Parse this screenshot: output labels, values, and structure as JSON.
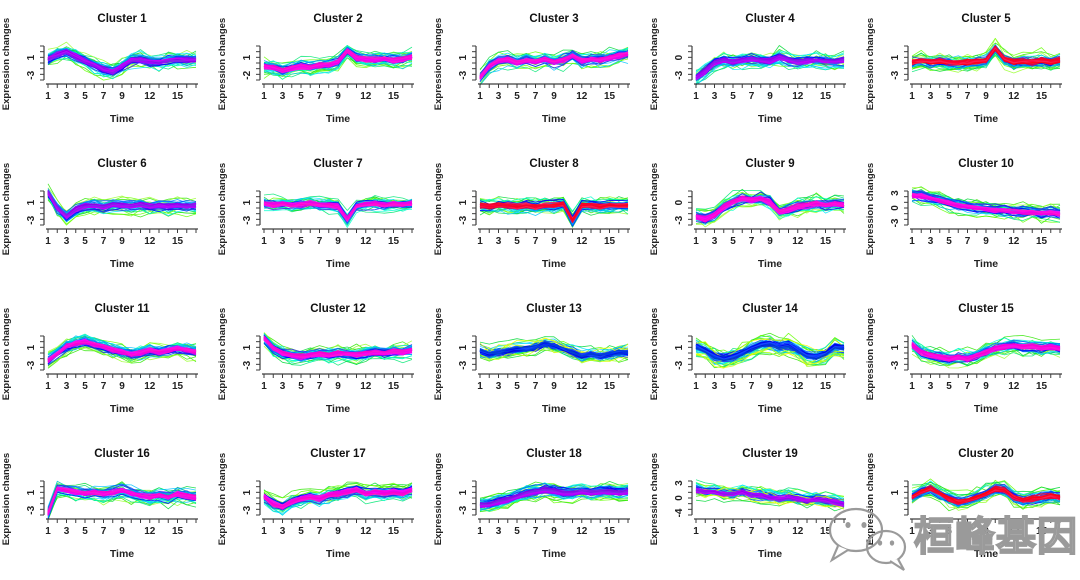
{
  "page": {
    "background": "#ffffff",
    "text_color": "#1a1a1a",
    "axis_color": "#3d3d3d"
  },
  "watermark": {
    "icon": "wechat-logo-icon",
    "text": "桓峰基因",
    "outline_color": "#9a9a9a"
  },
  "chart_data": {
    "type": "line",
    "description": "Grid of 20 fuzzy c-means (Mfuzz-style) gene expression cluster profiles over time; many member traces per panel colored green/cyan/blue (low membership) through violet/magenta/red (high membership).",
    "layout": {
      "rows": 4,
      "cols": 5,
      "grid": true,
      "legend": "none"
    },
    "xlabel": "Time",
    "ylabel": "Expression changes",
    "n_timepoints": 17,
    "xtick_labels": [
      "1",
      "3",
      "5",
      "7",
      "9",
      "12",
      "15"
    ],
    "xtick_indices": [
      0,
      2,
      4,
      6,
      8,
      11,
      14
    ],
    "membership_palette_low_to_high": [
      "#33e600",
      "#00ffcc",
      "#00c3ff",
      "#0033ff",
      "#8a00e6",
      "#ff00ff",
      "#ff0040"
    ],
    "clusters": [
      {
        "title": "Cluster 1",
        "yticks": [
          "-3",
          "1"
        ],
        "core": "violet",
        "profile": [
          0.15,
          0.45,
          0.6,
          0.35,
          0.05,
          -0.2,
          -0.45,
          -0.6,
          -0.25,
          0.1,
          0.15,
          0.05,
          0,
          0.1,
          0.15,
          0.1,
          0.15
        ]
      },
      {
        "title": "Cluster 2",
        "yticks": [
          "-2",
          "1"
        ],
        "core": "magenta",
        "profile": [
          -0.25,
          -0.35,
          -0.5,
          -0.35,
          -0.25,
          -0.3,
          -0.2,
          -0.15,
          0,
          0.65,
          0.25,
          0.15,
          0.1,
          0.2,
          0.1,
          0.15,
          0.3
        ]
      },
      {
        "title": "Cluster 3",
        "yticks": [
          "-3",
          "1"
        ],
        "core": "magenta",
        "profile": [
          -0.95,
          -0.25,
          0.05,
          0.15,
          -0.05,
          0.1,
          0,
          0.15,
          0,
          0.1,
          0.35,
          0.05,
          0.15,
          0.1,
          0.25,
          0.35,
          0.45
        ]
      },
      {
        "title": "Cluster 4",
        "yticks": [
          "-3",
          "0"
        ],
        "core": "violet",
        "profile": [
          -0.95,
          -0.55,
          -0.05,
          0.1,
          0,
          0.1,
          0.15,
          0.1,
          0.05,
          0.3,
          0.1,
          0,
          0.05,
          0.1,
          0.05,
          0,
          0.1
        ]
      },
      {
        "title": "Cluster 5",
        "yticks": [
          "-3",
          "1"
        ],
        "core": "red",
        "profile": [
          0,
          0.08,
          -0.02,
          0.06,
          -0.04,
          -0.08,
          0,
          0.02,
          0.1,
          0.8,
          0.15,
          -0.02,
          0.06,
          0,
          0.08,
          0,
          0.1
        ]
      },
      {
        "title": "Cluster 6",
        "yticks": [
          "-3",
          "1"
        ],
        "core": "violet",
        "profile": [
          0.85,
          -0.05,
          -0.55,
          -0.15,
          0.05,
          0.1,
          0,
          0.15,
          0.1,
          0.05,
          0.12,
          0.02,
          0.1,
          0.02,
          0.1,
          0.05,
          0.1
        ]
      },
      {
        "title": "Cluster 7",
        "yticks": [
          "-3",
          "1"
        ],
        "core": "magenta",
        "profile": [
          0.2,
          0.12,
          0.2,
          0.1,
          0.15,
          0.2,
          0.12,
          0.1,
          0.05,
          -0.75,
          0.05,
          0.12,
          0.2,
          0.12,
          0.18,
          0.12,
          0.2
        ]
      },
      {
        "title": "Cluster 8",
        "yticks": [
          "-3",
          "1"
        ],
        "core": "red",
        "profile": [
          0.1,
          0.02,
          0.1,
          0.08,
          0.02,
          0.1,
          0.02,
          0.08,
          0.1,
          0.18,
          -0.8,
          0.08,
          0.1,
          0.02,
          0.1,
          0.08,
          0.1
        ]
      },
      {
        "title": "Cluster 9",
        "yticks": [
          "-3",
          "0"
        ],
        "core": "magenta",
        "profile": [
          -0.55,
          -0.7,
          -0.45,
          0,
          0.3,
          0.5,
          0.42,
          0.5,
          0.3,
          -0.3,
          -0.18,
          0.02,
          0.1,
          0.2,
          0.12,
          0.2,
          0.12
        ]
      },
      {
        "title": "Cluster 10",
        "yticks": [
          "-3",
          "0",
          "3"
        ],
        "core": "magenta",
        "profile": [
          0.7,
          0.62,
          0.5,
          0.38,
          0.22,
          0.1,
          0.02,
          -0.08,
          -0.12,
          -0.2,
          -0.22,
          -0.28,
          -0.3,
          -0.32,
          -0.38,
          -0.32,
          -0.4
        ]
      },
      {
        "title": "Cluster 11",
        "yticks": [
          "-3",
          "1"
        ],
        "core": "magenta",
        "profile": [
          -0.5,
          -0.1,
          0.3,
          0.5,
          0.58,
          0.42,
          0.3,
          0.12,
          0,
          -0.18,
          -0.08,
          0.1,
          0,
          0.1,
          0.18,
          0.1,
          0
        ]
      },
      {
        "title": "Cluster 12",
        "yticks": [
          "-3",
          "1"
        ],
        "core": "magenta",
        "profile": [
          0.8,
          0.2,
          -0.1,
          -0.22,
          -0.3,
          -0.2,
          -0.12,
          -0.2,
          -0.1,
          -0.12,
          -0.2,
          -0.1,
          0,
          -0.08,
          0,
          -0.02,
          0.1
        ]
      },
      {
        "title": "Cluster 13",
        "yticks": [
          "-3",
          "1"
        ],
        "core": "blue",
        "yellow": true,
        "profile": [
          0.1,
          -0.1,
          0,
          0.1,
          0.18,
          0.2,
          0.3,
          0.5,
          0.4,
          0.2,
          0,
          -0.2,
          -0.1,
          -0.2,
          -0.1,
          0,
          0
        ]
      },
      {
        "title": "Cluster 14",
        "yticks": [
          "-3",
          "1"
        ],
        "core": "blue",
        "yellow": true,
        "profile": [
          0.3,
          0.1,
          -0.3,
          -0.42,
          -0.3,
          -0.1,
          0.2,
          0.42,
          0.5,
          0.3,
          0.4,
          0.1,
          -0.22,
          -0.3,
          -0.1,
          0.3,
          0.2
        ]
      },
      {
        "title": "Cluster 15",
        "yticks": [
          "-3",
          "1"
        ],
        "core": "magenta",
        "profile": [
          0.42,
          0,
          -0.2,
          -0.3,
          -0.42,
          -0.3,
          -0.4,
          -0.2,
          0,
          0.22,
          0.32,
          0.4,
          0.3,
          0.32,
          0.22,
          0.3,
          0.22
        ]
      },
      {
        "title": "Cluster 16",
        "yticks": [
          "-3",
          "1"
        ],
        "core": "magenta",
        "profile": [
          -0.95,
          0.5,
          0.4,
          0.3,
          0.22,
          0.3,
          0.2,
          0.3,
          0.4,
          0.22,
          0.1,
          0,
          0.1,
          0,
          0.2,
          0.1,
          0
        ]
      },
      {
        "title": "Cluster 17",
        "yticks": [
          "-3",
          "1"
        ],
        "core": "magenta",
        "profile": [
          0,
          -0.42,
          -0.6,
          -0.3,
          -0.1,
          0,
          -0.1,
          0.1,
          0.2,
          0.3,
          0.4,
          0.2,
          0.3,
          0.22,
          0.3,
          0.2,
          0.4
        ]
      },
      {
        "title": "Cluster 18",
        "yticks": [
          "-3",
          "1"
        ],
        "core": "violet",
        "profile": [
          -0.5,
          -0.42,
          -0.3,
          -0.2,
          0,
          0.2,
          0.3,
          0.4,
          0.32,
          0.22,
          0.2,
          0.3,
          0.22,
          0.3,
          0.3,
          0.22,
          0.3
        ]
      },
      {
        "title": "Cluster 19",
        "yticks": [
          "-4",
          "0",
          "3"
        ],
        "core": "violet",
        "yellow": true,
        "profile": [
          0.4,
          0.32,
          0.3,
          0.22,
          0.2,
          0.3,
          0.12,
          0.1,
          0,
          -0.1,
          0,
          -0.1,
          -0.2,
          -0.12,
          -0.2,
          -0.3,
          -0.4
        ]
      },
      {
        "title": "Cluster 20",
        "yticks": [
          "1"
        ],
        "core": "red",
        "profile": [
          0,
          0.3,
          0.5,
          0.2,
          -0.1,
          -0.3,
          -0.2,
          0,
          0.2,
          0.5,
          0.42,
          0,
          -0.2,
          -0.1,
          0,
          0.1,
          0
        ]
      }
    ]
  }
}
